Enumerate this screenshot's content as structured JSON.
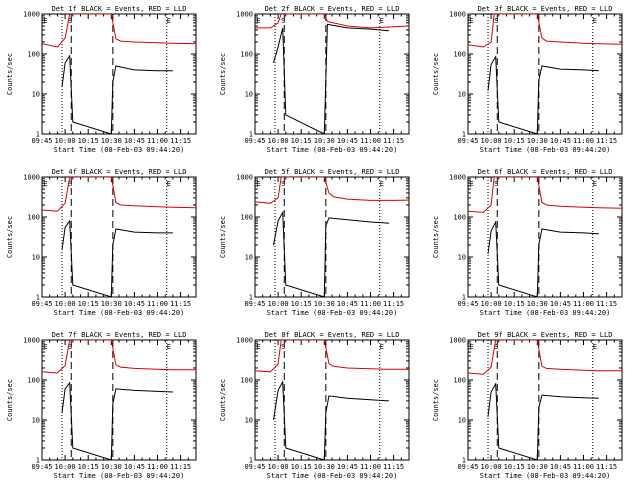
{
  "figure": {
    "xlabel": "Start Time (08-Feb-03 09:44:20)",
    "ylabel": "Counts/sec",
    "colors": {
      "events": "#000000",
      "lld": "#dd0000",
      "frame": "#000000"
    }
  },
  "chart_data": [
    {
      "type": "line",
      "title": "Det 1f BLACK = Events, RED = LLD",
      "xlabel": "Start Time (08-Feb-03 09:44:20)",
      "ylabel": "Counts/sec",
      "xlim": [
        "09:45",
        "11:25"
      ],
      "ylim": [
        1,
        1000
      ],
      "yscale": "log",
      "x_ticks": [
        "09:45",
        "10:00",
        "10:15",
        "10:30",
        "10:45",
        "11:00",
        "11:15"
      ],
      "y_ticks": [
        "1",
        "10",
        "100",
        "1000"
      ],
      "marker_labels": [
        "E",
        "S",
        "E"
      ],
      "series": [
        {
          "name": "RED = LLD",
          "x": [
            "09:45",
            "09:55",
            "10:00",
            "10:03",
            "10:05",
            "10:30",
            "10:33",
            "10:36",
            "10:45",
            "11:00",
            "11:10",
            "11:25"
          ],
          "values": [
            180,
            150,
            250,
            1000,
            1000,
            1000,
            240,
            210,
            200,
            190,
            185,
            180
          ]
        },
        {
          "name": "BLACK = Events",
          "x": [
            "09:58",
            "10:00",
            "10:03",
            "10:05",
            "10:30",
            "10:31",
            "10:33",
            "10:45",
            "11:00",
            "11:10"
          ],
          "values": [
            15,
            60,
            90,
            2,
            1,
            20,
            50,
            40,
            38,
            38
          ]
        }
      ]
    },
    {
      "type": "line",
      "title": "Det 2f BLACK = Events, RED = LLD",
      "xlabel": "Start Time (08-Feb-03 09:44:20)",
      "ylabel": "Counts/sec",
      "xlim": [
        "09:45",
        "11:25"
      ],
      "ylim": [
        1,
        1000
      ],
      "yscale": "log",
      "x_ticks": [
        "09:45",
        "10:00",
        "10:15",
        "10:30",
        "10:45",
        "11:00",
        "11:15"
      ],
      "y_ticks": [
        "1",
        "10",
        "100",
        "1000"
      ],
      "marker_labels": [
        "E",
        "S",
        "E"
      ],
      "series": [
        {
          "name": "RED = LLD",
          "x": [
            "09:45",
            "09:55",
            "10:00",
            "10:02",
            "10:05",
            "10:30",
            "10:32",
            "10:45",
            "11:00",
            "11:15",
            "11:25"
          ],
          "values": [
            450,
            450,
            600,
            1000,
            1000,
            1000,
            650,
            500,
            450,
            480,
            500
          ]
        },
        {
          "name": "BLACK = Events",
          "x": [
            "09:57",
            "10:00",
            "10:03",
            "10:05",
            "10:30",
            "10:32",
            "10:45",
            "11:00",
            "11:12"
          ],
          "values": [
            60,
            150,
            450,
            3,
            1,
            550,
            450,
            420,
            380
          ]
        }
      ]
    },
    {
      "type": "line",
      "title": "Det 3f BLACK = Events, RED = LLD",
      "xlabel": "Start Time (08-Feb-03 09:44:20)",
      "ylabel": "Counts/sec",
      "xlim": [
        "09:45",
        "11:25"
      ],
      "ylim": [
        1,
        1000
      ],
      "yscale": "log",
      "x_ticks": [
        "09:45",
        "10:00",
        "10:15",
        "10:30",
        "10:45",
        "11:00",
        "11:15"
      ],
      "y_ticks": [
        "1",
        "10",
        "100",
        "1000"
      ],
      "marker_labels": [
        "E",
        "S",
        "E"
      ],
      "series": [
        {
          "name": "RED = LLD",
          "x": [
            "09:45",
            "09:55",
            "10:00",
            "10:02",
            "10:05",
            "10:30",
            "10:33",
            "10:36",
            "10:45",
            "11:00",
            "11:10",
            "11:25"
          ],
          "values": [
            170,
            150,
            200,
            1000,
            1000,
            1000,
            250,
            210,
            200,
            185,
            180,
            175
          ]
        },
        {
          "name": "BLACK = Events",
          "x": [
            "09:58",
            "10:00",
            "10:03",
            "10:05",
            "10:30",
            "10:31",
            "10:33",
            "10:45",
            "11:00",
            "11:10"
          ],
          "values": [
            12,
            55,
            85,
            2,
            1,
            22,
            50,
            42,
            40,
            38
          ]
        }
      ]
    },
    {
      "type": "line",
      "title": "Det 4f BLACK = Events, RED = LLD",
      "xlabel": "Start Time (08-Feb-03 09:44:20)",
      "ylabel": "Counts/sec",
      "xlim": [
        "09:45",
        "11:25"
      ],
      "ylim": [
        1,
        1000
      ],
      "yscale": "log",
      "x_ticks": [
        "09:45",
        "10:00",
        "10:15",
        "10:30",
        "10:45",
        "11:00",
        "11:15"
      ],
      "y_ticks": [
        "1",
        "10",
        "100",
        "1000"
      ],
      "marker_labels": [
        "E",
        "S",
        "E"
      ],
      "series": [
        {
          "name": "RED = LLD",
          "x": [
            "09:45",
            "09:55",
            "10:00",
            "10:03",
            "10:05",
            "10:30",
            "10:33",
            "10:36",
            "10:45",
            "11:00",
            "11:10",
            "11:25"
          ],
          "values": [
            150,
            140,
            220,
            1000,
            1000,
            1000,
            230,
            200,
            190,
            180,
            175,
            170
          ]
        },
        {
          "name": "BLACK = Events",
          "x": [
            "09:58",
            "10:00",
            "10:03",
            "10:05",
            "10:30",
            "10:31",
            "10:33",
            "10:45",
            "11:00",
            "11:10"
          ],
          "values": [
            15,
            55,
            80,
            2,
            1,
            20,
            50,
            42,
            40,
            40
          ]
        }
      ]
    },
    {
      "type": "line",
      "title": "Det 5f BLACK = Events, RED = LLD",
      "xlabel": "Start Time (08-Feb-03 09:44:20)",
      "ylabel": "Counts/sec",
      "xlim": [
        "09:45",
        "11:25"
      ],
      "ylim": [
        1,
        1000
      ],
      "yscale": "log",
      "x_ticks": [
        "09:45",
        "10:00",
        "10:15",
        "10:30",
        "10:45",
        "11:00",
        "11:15"
      ],
      "y_ticks": [
        "1",
        "10",
        "100",
        "1000"
      ],
      "marker_labels": [
        "E",
        "S",
        "E"
      ],
      "series": [
        {
          "name": "RED = LLD",
          "x": [
            "09:45",
            "09:55",
            "10:00",
            "10:02",
            "10:05",
            "10:30",
            "10:33",
            "10:36",
            "10:45",
            "11:00",
            "11:15",
            "11:25"
          ],
          "values": [
            240,
            220,
            300,
            1000,
            1000,
            1000,
            400,
            320,
            280,
            260,
            260,
            265
          ]
        },
        {
          "name": "BLACK = Events",
          "x": [
            "09:57",
            "10:00",
            "10:03",
            "10:05",
            "10:30",
            "10:31",
            "10:33",
            "10:45",
            "11:00",
            "11:12"
          ],
          "values": [
            20,
            80,
            130,
            2,
            1,
            60,
            95,
            85,
            75,
            70
          ]
        }
      ]
    },
    {
      "type": "line",
      "title": "Det 6f BLACK = Events, RED = LLD",
      "xlabel": "Start Time (08-Feb-03 09:44:20)",
      "ylabel": "Counts/sec",
      "xlim": [
        "09:45",
        "11:25"
      ],
      "ylim": [
        1,
        1000
      ],
      "yscale": "log",
      "x_ticks": [
        "09:45",
        "10:00",
        "10:15",
        "10:30",
        "10:45",
        "11:00",
        "11:15"
      ],
      "y_ticks": [
        "1",
        "10",
        "100",
        "1000"
      ],
      "marker_labels": [
        "E",
        "S",
        "E"
      ],
      "series": [
        {
          "name": "RED = LLD",
          "x": [
            "09:45",
            "09:55",
            "10:00",
            "10:02",
            "10:05",
            "10:30",
            "10:33",
            "10:36",
            "10:45",
            "11:00",
            "11:10",
            "11:25"
          ],
          "values": [
            140,
            130,
            200,
            1000,
            1000,
            1000,
            230,
            200,
            185,
            175,
            170,
            165
          ]
        },
        {
          "name": "BLACK = Events",
          "x": [
            "09:58",
            "10:00",
            "10:03",
            "10:05",
            "10:30",
            "10:31",
            "10:33",
            "10:45",
            "11:00",
            "11:10"
          ],
          "values": [
            12,
            45,
            75,
            2,
            1,
            20,
            50,
            42,
            40,
            38
          ]
        }
      ]
    },
    {
      "type": "line",
      "title": "Det 7f BLACK = Events, RED = LLD",
      "xlabel": "Start Time (08-Feb-03 09:44:20)",
      "ylabel": "Counts/sec",
      "xlim": [
        "09:45",
        "11:25"
      ],
      "ylim": [
        1,
        1000
      ],
      "yscale": "log",
      "x_ticks": [
        "09:45",
        "10:00",
        "10:15",
        "10:30",
        "10:45",
        "11:00",
        "11:15"
      ],
      "y_ticks": [
        "1",
        "10",
        "100",
        "1000"
      ],
      "marker_labels": [
        "E",
        "S",
        "E"
      ],
      "series": [
        {
          "name": "RED = LLD",
          "x": [
            "09:45",
            "09:55",
            "10:00",
            "10:03",
            "10:05",
            "10:30",
            "10:33",
            "10:36",
            "10:45",
            "11:00",
            "11:10",
            "11:25"
          ],
          "values": [
            160,
            150,
            230,
            1000,
            1000,
            1000,
            240,
            210,
            195,
            185,
            180,
            180
          ]
        },
        {
          "name": "BLACK = Events",
          "x": [
            "09:58",
            "10:00",
            "10:03",
            "10:05",
            "10:30",
            "10:31",
            "10:33",
            "10:45",
            "11:00",
            "11:10"
          ],
          "values": [
            15,
            60,
            85,
            2,
            1,
            25,
            60,
            55,
            52,
            50
          ]
        }
      ]
    },
    {
      "type": "line",
      "title": "Det 8f BLACK = Events, RED = LLD",
      "xlabel": "Start Time (08-Feb-03 09:44:20)",
      "ylabel": "Counts/sec",
      "xlim": [
        "09:45",
        "11:25"
      ],
      "ylim": [
        1,
        1000
      ],
      "yscale": "log",
      "x_ticks": [
        "09:45",
        "10:00",
        "10:15",
        "10:30",
        "10:45",
        "11:00",
        "11:15"
      ],
      "y_ticks": [
        "1",
        "10",
        "100",
        "1000"
      ],
      "marker_labels": [
        "E",
        "S",
        "E"
      ],
      "series": [
        {
          "name": "RED = LLD",
          "x": [
            "09:45",
            "09:55",
            "10:00",
            "10:02",
            "10:05",
            "10:30",
            "10:33",
            "10:36",
            "10:45",
            "11:00",
            "11:10",
            "11:25"
          ],
          "values": [
            170,
            160,
            250,
            1000,
            1000,
            1000,
            260,
            220,
            200,
            190,
            185,
            185
          ]
        },
        {
          "name": "BLACK = Events",
          "x": [
            "09:57",
            "10:00",
            "10:03",
            "10:05",
            "10:30",
            "10:31",
            "10:33",
            "10:45",
            "11:00",
            "11:12"
          ],
          "values": [
            10,
            55,
            90,
            2,
            1,
            15,
            40,
            35,
            32,
            30
          ]
        }
      ]
    },
    {
      "type": "line",
      "title": "Det 9f BLACK = Events, RED = LLD",
      "xlabel": "Start Time (08-Feb-03 09:44:20)",
      "ylabel": "Counts/sec",
      "xlim": [
        "09:45",
        "11:25"
      ],
      "ylim": [
        1,
        1000
      ],
      "yscale": "log",
      "x_ticks": [
        "09:45",
        "10:00",
        "10:15",
        "10:30",
        "10:45",
        "11:00",
        "11:15"
      ],
      "y_ticks": [
        "1",
        "10",
        "100",
        "1000"
      ],
      "marker_labels": [
        "E",
        "S",
        "E"
      ],
      "series": [
        {
          "name": "RED = LLD",
          "x": [
            "09:45",
            "09:55",
            "10:00",
            "10:03",
            "10:05",
            "10:30",
            "10:33",
            "10:36",
            "10:45",
            "11:00",
            "11:10",
            "11:25"
          ],
          "values": [
            150,
            140,
            210,
            1000,
            1000,
            1000,
            220,
            195,
            185,
            175,
            170,
            170
          ]
        },
        {
          "name": "BLACK = Events",
          "x": [
            "09:58",
            "10:00",
            "10:03",
            "10:05",
            "10:30",
            "10:31",
            "10:33",
            "10:45",
            "11:00",
            "11:10"
          ],
          "values": [
            12,
            50,
            80,
            2,
            1,
            20,
            42,
            38,
            36,
            35
          ]
        }
      ]
    }
  ]
}
